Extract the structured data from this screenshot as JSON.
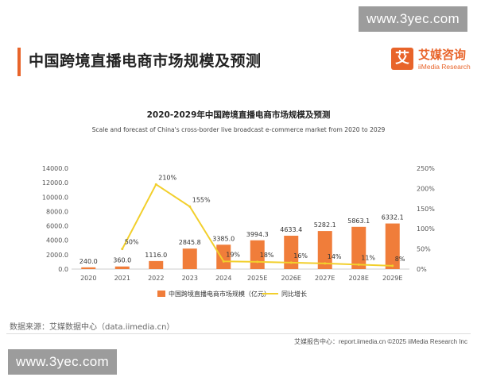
{
  "watermark": {
    "text": "www.3yec.com"
  },
  "header": {
    "title": "中国跨境直播电商市场规模及预测"
  },
  "logo": {
    "mark": "艾",
    "name_cn": "艾媒咨询",
    "name_en": "iiMedia Research"
  },
  "colors": {
    "accent": "#e8642a",
    "bar": "#f07d3a",
    "line": "#f2cf2c",
    "axis_text": "#555555"
  },
  "chart_data": {
    "type": "bar",
    "title": "2020-2029年中国跨境直播电商市场规模及预测",
    "subtitle": "Scale and forecast of China's cross-border live broadcast e-commerce market from 2020 to 2029",
    "categories": [
      "2020",
      "2021",
      "2022",
      "2023",
      "2024",
      "2025E",
      "2026E",
      "2027E",
      "2028E",
      "2029E"
    ],
    "series": [
      {
        "name": "中国跨境直播电商市场规模（亿元）",
        "type": "bar",
        "axis": "left",
        "values": [
          240.0,
          360.0,
          1116.0,
          2845.8,
          3385.0,
          3994.3,
          4633.4,
          5282.1,
          5863.1,
          6332.1
        ],
        "labels": [
          "240.0",
          "360.0",
          "1116.0",
          "2845.8",
          "3385.0",
          "3994.3",
          "4633.4",
          "5282.1",
          "5863.1",
          "6332.1"
        ]
      },
      {
        "name": "同比增长",
        "type": "line",
        "axis": "right",
        "values": [
          null,
          50,
          210,
          155,
          19,
          18,
          16,
          14,
          11,
          8
        ],
        "labels": [
          "",
          "50%",
          "210%",
          "155%",
          "19%",
          "18%",
          "16%",
          "14%",
          "11%",
          "8%"
        ]
      }
    ],
    "ylim_left": [
      0,
      14000
    ],
    "yticks_left": [
      "0.0",
      "2000.0",
      "4000.0",
      "6000.0",
      "8000.0",
      "10000.0",
      "12000.0",
      "14000.0"
    ],
    "ylim_right": [
      0,
      250
    ],
    "yticks_right": [
      "0%",
      "50%",
      "100%",
      "150%",
      "200%",
      "250%"
    ],
    "legend_position": "bottom"
  },
  "footer": {
    "source": "数据来源：艾媒数据中心（data.iimedia.cn）",
    "right": "艾媒报告中心：report.iimedia.cn    ©2025  iiMedia Research  Inc"
  }
}
